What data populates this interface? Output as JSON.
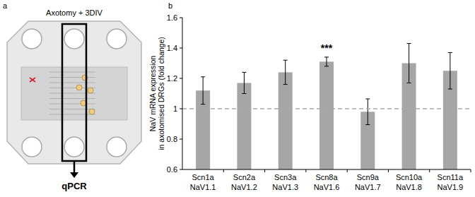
{
  "panel_a": {
    "label": "a",
    "title": "Axotomy + 3DIV",
    "output": "qPCR"
  },
  "chart_data": {
    "type": "bar",
    "title": "b",
    "y_label": "NaV mRNA expression\nin axotomised DRGs (fold change)",
    "categories": [
      "Scn1a\nNaV1.1",
      "Scn2a\nNaV1.2",
      "Scn3a\nNaV1.3",
      "Scn8a\nNaV1.6",
      "Scn9a\nNaV1.7",
      "Scn10a\nNaV1.8",
      "Scn11a\nNaV1.9"
    ],
    "values": [
      1.12,
      1.17,
      1.24,
      1.31,
      0.98,
      1.3,
      1.25
    ],
    "errors": [
      0.09,
      0.07,
      0.08,
      0.03,
      0.085,
      0.13,
      0.12
    ],
    "color": "#a6a6a6",
    "ylim": [
      0.6,
      1.6
    ],
    "yticks": [
      0.6,
      0.8,
      1,
      1.2,
      1.4,
      1.6
    ],
    "grid": false,
    "annotations": [
      {
        "text": "***",
        "category": 3
      },
      {
        "y": 1,
        "line_style": "dashed"
      }
    ]
  }
}
